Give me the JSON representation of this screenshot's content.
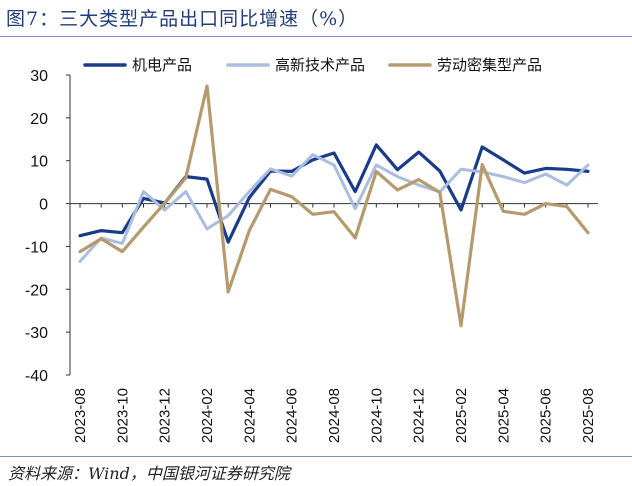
{
  "header": {
    "title": "图7：三大类型产品出口同比增速（%）"
  },
  "footer": {
    "source": "资料来源：Wind，中国银河证券研究院"
  },
  "chart_data": {
    "type": "line",
    "title": "图7：三大类型产品出口同比增速（%）",
    "xlabel": "",
    "ylabel": "",
    "ylim": [
      -40,
      30
    ],
    "yticks": [
      30,
      20,
      10,
      0,
      -10,
      -20,
      -30,
      -40
    ],
    "grid": false,
    "legend_position": "top",
    "categories": [
      "2023-08",
      "2023-09",
      "2023-10",
      "2023-11",
      "2023-12",
      "2024-01",
      "2024-02",
      "2024-03",
      "2024-04",
      "2024-05",
      "2024-06",
      "2024-07",
      "2024-08",
      "2024-09",
      "2024-10",
      "2024-11",
      "2024-12",
      "2025-01",
      "2025-02",
      "2025-03",
      "2025-04",
      "2025-05",
      "2025-06",
      "2025-07",
      "2025-08"
    ],
    "xtick_labels": [
      "2023-08",
      "2023-10",
      "2023-12",
      "2024-02",
      "2024-04",
      "2024-06",
      "2024-08",
      "2024-10",
      "2024-12",
      "2025-02",
      "2025-04",
      "2025-06",
      "2025-08"
    ],
    "series": [
      {
        "name": "机电产品",
        "color": "#1a3a8a",
        "width": 3.2,
        "values": [
          -7.5,
          -6.3,
          -6.8,
          1.2,
          0.1,
          6.3,
          5.7,
          -9.0,
          1.4,
          7.6,
          7.5,
          10.2,
          11.8,
          2.8,
          13.7,
          7.9,
          12.0,
          7.6,
          -1.5,
          13.2,
          10.2,
          7.1,
          8.2,
          8.0,
          7.5
        ]
      },
      {
        "name": "高新技术产品",
        "color": "#a9bde0",
        "width": 3.0,
        "values": [
          -13.5,
          -8.0,
          -9.3,
          2.8,
          -1.5,
          2.8,
          -5.9,
          -2.8,
          2.8,
          8.1,
          6.4,
          11.4,
          9.0,
          -1.2,
          9.0,
          6.3,
          4.3,
          2.7,
          8.0,
          7.4,
          6.3,
          4.9,
          6.9,
          4.3,
          9.0
        ]
      },
      {
        "name": "劳动密集型产品",
        "color": "#b59a6e",
        "width": 3.2,
        "values": [
          -11.2,
          -8.2,
          -11.2,
          -5.5,
          0.1,
          6.0,
          27.4,
          -20.6,
          -6.3,
          3.3,
          1.6,
          -2.5,
          -1.9,
          -8.0,
          7.5,
          3.2,
          5.6,
          2.6,
          -28.5,
          9.1,
          -1.8,
          -2.5,
          0.0,
          -0.7,
          -6.8
        ]
      }
    ]
  }
}
